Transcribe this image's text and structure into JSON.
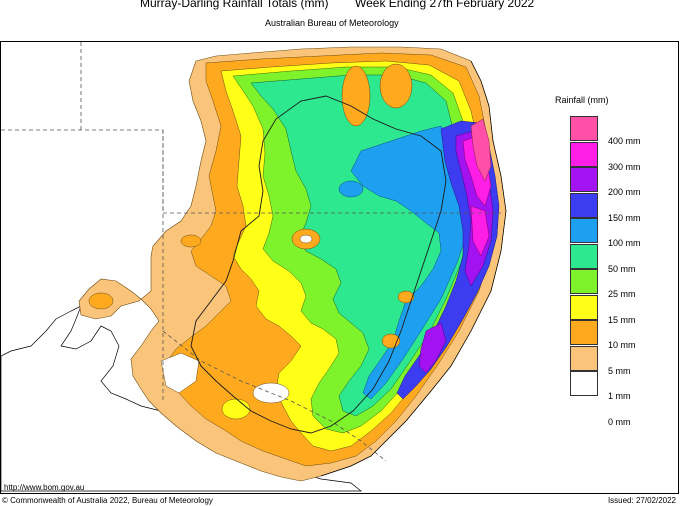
{
  "header": {
    "title": "Murray-Darling Rainfall Totals (mm)",
    "period": "Week Ending 27th February 2022",
    "agency": "Australian Bureau of Meteorology"
  },
  "legend": {
    "title": "Rainfall (mm)",
    "items": [
      {
        "label": "400 mm",
        "color": "#ff4fa6"
      },
      {
        "label": "300 mm",
        "color": "#ff1ee6"
      },
      {
        "label": "200 mm",
        "color": "#a312f0"
      },
      {
        "label": "150 mm",
        "color": "#3c3cf0"
      },
      {
        "label": "100 mm",
        "color": "#1ea0f0"
      },
      {
        "label": "50 mm",
        "color": "#2ee890"
      },
      {
        "label": "25 mm",
        "color": "#7ef22a"
      },
      {
        "label": "15 mm",
        "color": "#ffff18"
      },
      {
        "label": "10 mm",
        "color": "#ffaa1e"
      },
      {
        "label": "5 mm",
        "color": "#fac47a"
      },
      {
        "label": "1 mm",
        "color": "#ffffff"
      },
      {
        "label": "0 mm",
        "color": ""
      }
    ]
  },
  "map": {
    "region": "Murray-Darling Basin, south-eastern Australia",
    "fills": {
      "land": "#ffffff",
      "rain_1": "#fac47a",
      "rain_5": "#ffaa1e",
      "rain_10": "#ffff18",
      "rain_15": "#7ef22a",
      "rain_25": "#2ee890",
      "rain_50": "#1ea0f0",
      "rain_100": "#3c3cf0",
      "rain_150": "#a312f0",
      "rain_200": "#ff1ee6",
      "rain_300": "#ff4fa6"
    }
  },
  "footer": {
    "url": "http://www.bom.gov.au",
    "copyright": "© Commonwealth of Australia 2022, Bureau of Meteorology",
    "issued": "Issued: 27/02/2022"
  }
}
